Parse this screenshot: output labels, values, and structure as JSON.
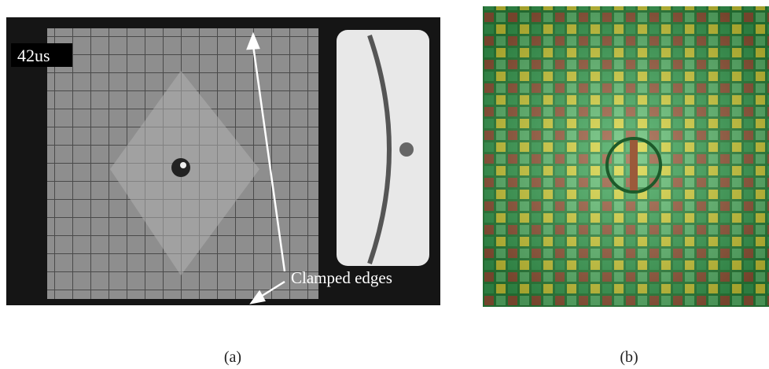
{
  "panels": [
    {
      "label": "(a)",
      "timestamp": "42us",
      "annotation": "Clamped edges"
    },
    {
      "label": "(b)"
    }
  ]
}
